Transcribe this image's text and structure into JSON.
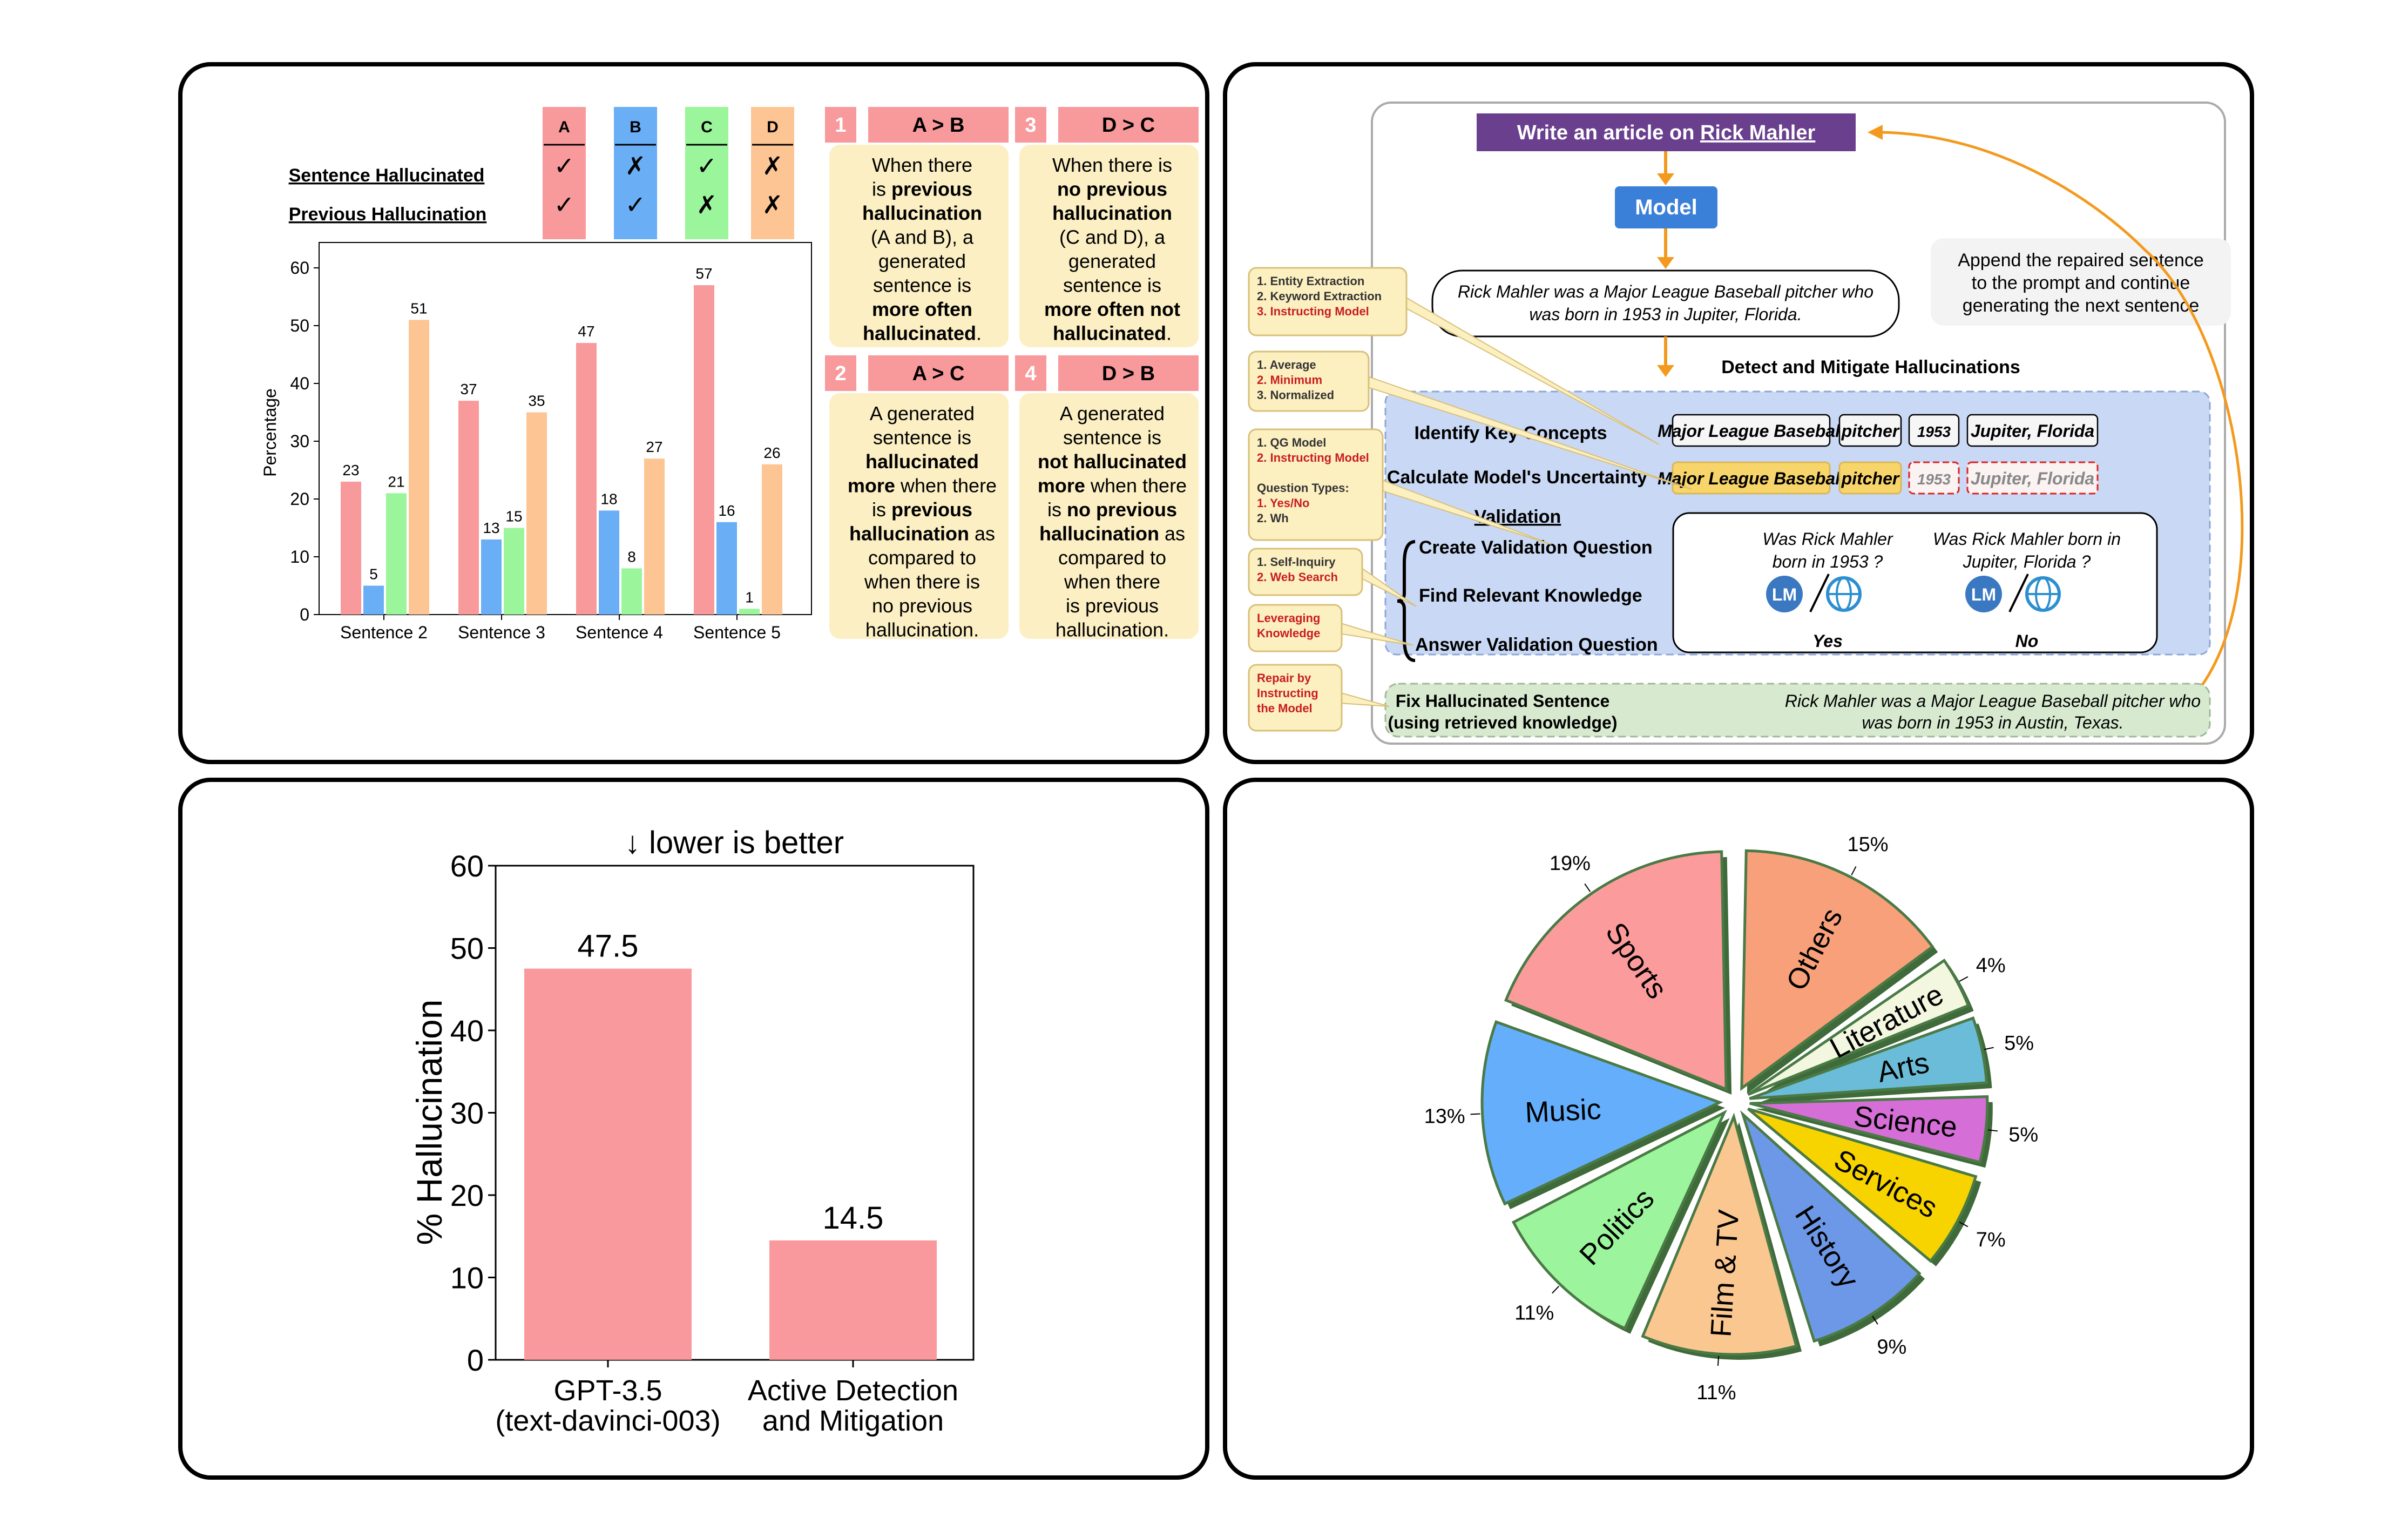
{
  "panel1": {
    "cat_headers": [
      "A",
      "B",
      "C",
      "D"
    ],
    "row_labels": [
      "Sentence Hallucinated",
      "Previous Hallucination"
    ],
    "row1_marks": [
      "✓",
      "✗",
      "✓",
      "✗"
    ],
    "row2_marks": [
      "✓",
      "✓",
      "✗",
      "✗"
    ],
    "cards": [
      {
        "num": "1",
        "title": "A > B",
        "lines": [
          [
            [
              "When there",
              false
            ]
          ],
          [
            [
              "is ",
              false
            ],
            [
              "previous",
              true
            ]
          ],
          [
            [
              "hallucination",
              true
            ]
          ],
          [
            [
              "(A and B), a",
              false
            ]
          ],
          [
            [
              "generated",
              false
            ]
          ],
          [
            [
              "sentence is",
              false
            ]
          ],
          [
            [
              "more often",
              true
            ]
          ],
          [
            [
              "hallucinated",
              true
            ],
            [
              ".",
              false
            ]
          ]
        ]
      },
      {
        "num": "3",
        "title": "D > C",
        "lines": [
          [
            [
              "When there is",
              false
            ]
          ],
          [
            [
              "no previous",
              true
            ]
          ],
          [
            [
              "hallucination",
              true
            ]
          ],
          [
            [
              "(C and D), a",
              false
            ]
          ],
          [
            [
              "generated",
              false
            ]
          ],
          [
            [
              "sentence is",
              false
            ]
          ],
          [
            [
              "more often not",
              true
            ]
          ],
          [
            [
              "hallucinated",
              true
            ],
            [
              ".",
              false
            ]
          ]
        ]
      },
      {
        "num": "2",
        "title": "A > C",
        "lines": [
          [
            [
              "A generated",
              false
            ]
          ],
          [
            [
              "sentence is",
              false
            ]
          ],
          [
            [
              "hallucinated",
              true
            ]
          ],
          [
            [
              "more",
              true
            ],
            [
              " when there",
              false
            ]
          ],
          [
            [
              "is ",
              false
            ],
            [
              "previous",
              true
            ]
          ],
          [
            [
              "hallucination",
              true
            ],
            [
              " as",
              false
            ]
          ],
          [
            [
              "compared to",
              false
            ]
          ],
          [
            [
              "when there is",
              false
            ]
          ],
          [
            [
              "no previous",
              false
            ]
          ],
          [
            [
              "hallucination.",
              false
            ]
          ]
        ]
      },
      {
        "num": "4",
        "title": "D > B",
        "lines": [
          [
            [
              "A generated",
              false
            ]
          ],
          [
            [
              "sentence is",
              false
            ]
          ],
          [
            [
              "not hallucinated",
              true
            ]
          ],
          [
            [
              "more",
              true
            ],
            [
              " when there",
              false
            ]
          ],
          [
            [
              "is ",
              false
            ],
            [
              "no previous",
              true
            ]
          ],
          [
            [
              "hallucination",
              true
            ],
            [
              " as",
              false
            ]
          ],
          [
            [
              "compared to",
              false
            ]
          ],
          [
            [
              "when there",
              false
            ]
          ],
          [
            [
              "is previous",
              false
            ]
          ],
          [
            [
              "hallucination.",
              false
            ]
          ]
        ]
      }
    ]
  },
  "panel2": {
    "prompt_prefix": "Write an article on ",
    "prompt_name": "Rick Mahler",
    "model_label": "Model",
    "generated_sentence": [
      "Rick Mahler was a Major League Baseball pitcher who",
      "was born in 1953 in Jupiter, Florida."
    ],
    "append_note": [
      "Append the repaired sentence",
      "to the prompt and continue",
      "generating the next sentence"
    ],
    "detect_label": "Detect and Mitigate Hallucinations",
    "steps": [
      "Identify Key Concepts",
      "Calculate Model's Uncertainty",
      "Validation",
      "Create Validation Question",
      "Find Relevant Knowledge",
      "Answer Validation Question"
    ],
    "concepts": [
      "Major League Baseball",
      "pitcher",
      "1953",
      "Jupiter, Florida"
    ],
    "questions": [
      [
        "Was Rick Mahler",
        "born in 1953 ?"
      ],
      [
        "Was Rick Mahler born in",
        "Jupiter, Florida ?"
      ]
    ],
    "answers": [
      "Yes",
      "No"
    ],
    "lm_label": "LM",
    "fix_label": [
      "Fix Hallucinated Sentence",
      "(using retrieved knowledge)"
    ],
    "fixed_sentence": [
      "Rick Mahler was a Major League Baseball pitcher who",
      "was born in 1953 in Austin, Texas."
    ],
    "side_notes": [
      {
        "lines": [
          [
            "1. Entity Extraction",
            false
          ],
          [
            "2. Keyword Extraction",
            false
          ],
          [
            "3. Instructing Model",
            true
          ]
        ]
      },
      {
        "lines": [
          [
            "1. Average",
            false
          ],
          [
            "2. Minimum",
            true
          ],
          [
            "3. Normalized",
            false
          ]
        ]
      },
      {
        "lines": [
          [
            "1. QG Model",
            false
          ],
          [
            "2. Instructing Model",
            true
          ],
          [
            "",
            false
          ],
          [
            "Question Types:",
            false
          ],
          [
            "1. Yes/No",
            true
          ],
          [
            "2. Wh",
            false
          ]
        ]
      },
      {
        "lines": [
          [
            "1. Self-Inquiry",
            false
          ],
          [
            "2. Web Search",
            true
          ]
        ]
      },
      {
        "lines": [
          [
            "Leveraging",
            true
          ],
          [
            "Knowledge",
            true
          ]
        ]
      },
      {
        "lines": [
          [
            "Repair by",
            true
          ],
          [
            "Instructing",
            true
          ],
          [
            "the Model",
            true
          ]
        ]
      }
    ]
  },
  "chart_data": [
    {
      "type": "bar",
      "categories": [
        "Sentence 2",
        "Sentence 3",
        "Sentence 4",
        "Sentence 5"
      ],
      "series": [
        {
          "name": "A",
          "values": [
            23,
            37,
            47,
            57
          ]
        },
        {
          "name": "B",
          "values": [
            5,
            13,
            18,
            16
          ]
        },
        {
          "name": "C",
          "values": [
            21,
            15,
            8,
            1
          ]
        },
        {
          "name": "D",
          "values": [
            51,
            35,
            27,
            26
          ]
        }
      ],
      "colors": [
        "#f8999c",
        "#6aaef6",
        "#9bf59b",
        "#fdc593"
      ],
      "ylabel": "Percentage",
      "ylim": [
        0,
        62
      ],
      "yticks": [
        0,
        10,
        20,
        30,
        40,
        50,
        60
      ]
    },
    {
      "type": "bar",
      "title": "↓  lower is better",
      "categories": [
        [
          "GPT-3.5",
          "(text-davinci-003)"
        ],
        [
          "Active Detection",
          "and Mitigation"
        ]
      ],
      "values": [
        47.5,
        14.5
      ],
      "value_labels": [
        "47.5",
        "14.5"
      ],
      "color": "#f9999d",
      "ylabel": "% Hallucination",
      "ylim": [
        0,
        60
      ],
      "yticks": [
        0,
        10,
        20,
        30,
        40,
        50,
        60
      ]
    },
    {
      "type": "pie",
      "labels": [
        "Others",
        "Literature",
        "Arts",
        "Science",
        "Services",
        "History",
        "Film & TV",
        "Politics",
        "Music",
        "Sports"
      ],
      "values": [
        15,
        4,
        5,
        5,
        7,
        9,
        11,
        11,
        13,
        19
      ],
      "pct_labels": [
        "15%",
        "4%",
        "5%",
        "5%",
        "7%",
        "9%",
        "11%",
        "11%",
        "13%",
        "19%"
      ],
      "colors": [
        "#f8a07a",
        "#f3f7df",
        "#6bbcd8",
        "#d56ed6",
        "#f7d300",
        "#6d98e7",
        "#fbc790",
        "#9cf59c",
        "#64aefc",
        "#fc9b9b"
      ]
    }
  ]
}
